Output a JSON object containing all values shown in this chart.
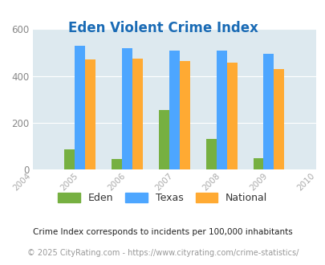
{
  "title": "Eden Violent Crime Index",
  "title_color": "#1a6bb5",
  "years": [
    2004,
    2005,
    2006,
    2007,
    2008,
    2009,
    2010
  ],
  "data_years": [
    2005,
    2006,
    2007,
    2008,
    2009
  ],
  "eden": [
    85,
    45,
    255,
    130,
    50
  ],
  "texas": [
    530,
    520,
    510,
    510,
    495
  ],
  "national": [
    470,
    475,
    465,
    458,
    430
  ],
  "eden_color": "#76b041",
  "texas_color": "#4da6ff",
  "national_color": "#ffaa33",
  "bg_color": "#dde9ef",
  "ylim": [
    0,
    600
  ],
  "yticks": [
    0,
    200,
    400,
    600
  ],
  "bar_width": 0.22,
  "legend_labels": [
    "Eden",
    "Texas",
    "National"
  ],
  "footnote1": "Crime Index corresponds to incidents per 100,000 inhabitants",
  "footnote2": "© 2025 CityRating.com - https://www.cityrating.com/crime-statistics/",
  "footnote1_color": "#222222",
  "footnote2_color": "#999999",
  "xtick_color": "#aaaaaa",
  "ytick_color": "#888888"
}
